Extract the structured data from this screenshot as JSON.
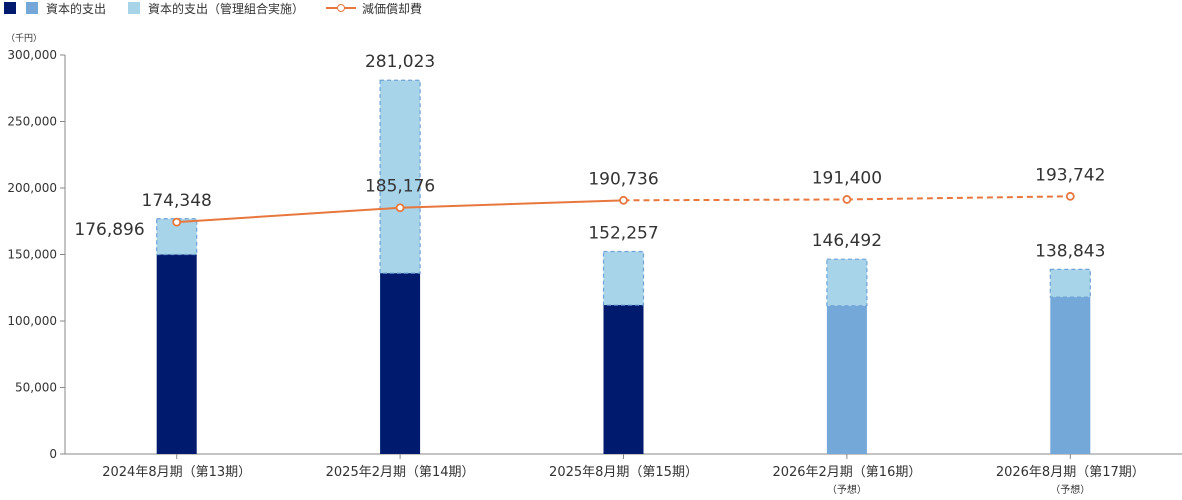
{
  "legend": {
    "capex_label": "資本的支出",
    "capex_mgmt_label": "資本的支出（管理組合実施）",
    "depreciation_label": "減価償却費"
  },
  "colors": {
    "capex_actual": "#001a6e",
    "capex_forecast": "#74a8d9",
    "capex_mgmt": "#a8d4ea",
    "capex_mgmt_border": "#6fa3d6",
    "depreciation": "#e8773d",
    "axis": "#888888"
  },
  "chart_data": {
    "type": "bar",
    "unit_label": "（千円）",
    "categories": [
      {
        "label": "2024年8月期（第13期）",
        "sub": ""
      },
      {
        "label": "2025年2月期（第14期）",
        "sub": ""
      },
      {
        "label": "2025年8月期（第15期）",
        "sub": ""
      },
      {
        "label": "2026年2月期（第16期）",
        "sub": "（予想）"
      },
      {
        "label": "2026年8月期（第17期）",
        "sub": "（予想）"
      }
    ],
    "ylim": [
      0,
      300000
    ],
    "yticks": [
      "0",
      "50,000",
      "100,000",
      "150,000",
      "200,000",
      "250,000",
      "300,000"
    ],
    "ytick_values": [
      0,
      50000,
      100000,
      150000,
      200000,
      250000,
      300000
    ],
    "series": [
      {
        "name": "資本的支出",
        "values": [
          150000,
          136000,
          112000,
          111500,
          118000
        ],
        "forecast": [
          false,
          false,
          false,
          true,
          true
        ]
      },
      {
        "name": "資本的支出（管理組合実施）",
        "values": [
          26896,
          145023,
          40257,
          34992,
          20843
        ]
      },
      {
        "name": "減価償却費",
        "values": [
          174348,
          185176,
          190736,
          191400,
          193742
        ],
        "dashed_from_index": 2
      }
    ],
    "total_labels": [
      "176,896",
      "281,023",
      "152,257",
      "146,492",
      "138,843"
    ],
    "line_labels": [
      "174,348",
      "185,176",
      "190,736",
      "191,400",
      "193,742"
    ]
  }
}
